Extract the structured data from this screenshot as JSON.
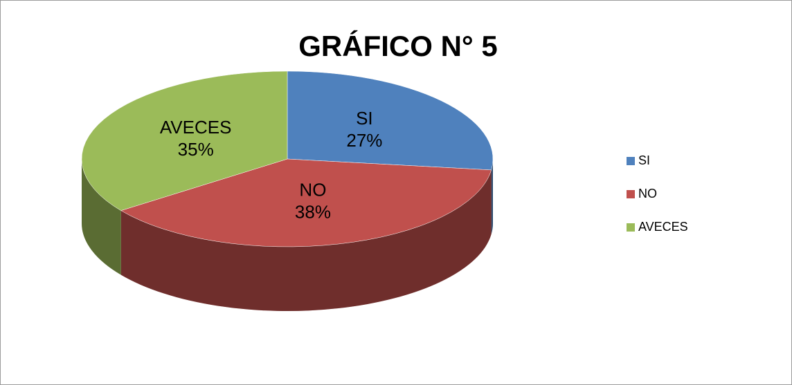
{
  "chart_data": {
    "type": "pie",
    "title": "GRÁFICO N° 5",
    "categories": [
      "SI",
      "NO",
      "AVECES"
    ],
    "values": [
      27,
      38,
      35
    ],
    "value_labels": [
      "27%",
      "38%",
      "35%"
    ],
    "colors": [
      "#4f81bd",
      "#c0504d",
      "#9bbb59"
    ],
    "legend": "right"
  }
}
